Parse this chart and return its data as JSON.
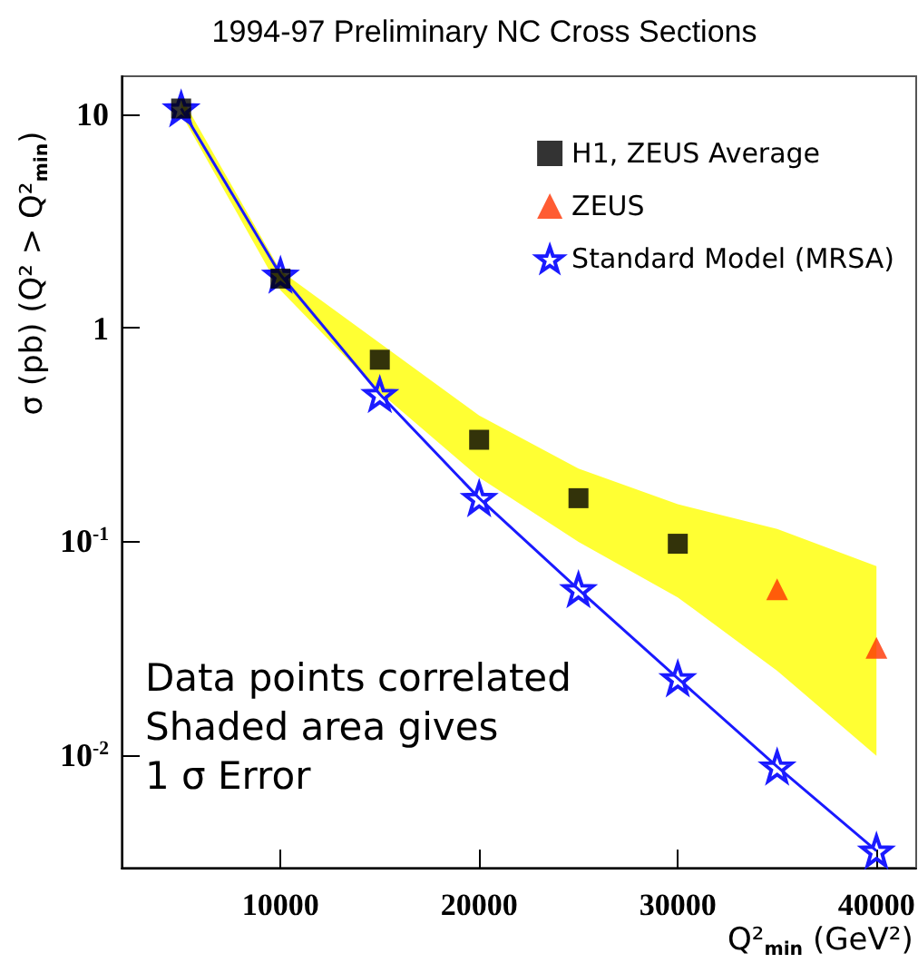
{
  "chart_data": {
    "type": "scatter",
    "title": "1994-97 Preliminary NC Cross Sections",
    "xlabel": "Q²$_{min}$ (GeV²)",
    "ylabel": "σ (pb) (Q² > Q²$_{min}$)",
    "log": "y",
    "legend": "top right",
    "xlim": [
      2000,
      42000
    ],
    "xticks": [
      10000,
      20000,
      30000,
      40000
    ],
    "ylim": [
      0.003,
      15
    ],
    "yticks": [
      {
        "value": 0.01,
        "label": "10$^{-2}$"
      },
      {
        "value": 0.1,
        "label": "10$^{-1}$"
      },
      1,
      10
    ],
    "annotations": [
      "Data points correlated",
      "Shaded area gives",
      "1 σ Error"
    ],
    "series": [
      {
        "type": "area",
        "color": "#ffff33",
        "x": [
          5000,
          10000,
          15000,
          20000,
          25000,
          30000,
          35000,
          40000
        ],
        "values": [
          null,
          null,
          null,
          null,
          null,
          null,
          null,
          null
        ],
        "lower": [
          10,
          1.5,
          0.5,
          0.2,
          0.1,
          0.055,
          0.025,
          0.01
        ],
        "upper": [
          12,
          1.85,
          0.85,
          0.39,
          0.22,
          0.15,
          0.115,
          0.077
        ]
      },
      {
        "name": "H1, ZEUS Average",
        "marker": "square",
        "color": "#000000",
        "x": [
          5000,
          10000,
          15000,
          20000,
          25000,
          30000
        ],
        "values": [
          10.6,
          1.7,
          0.71,
          0.3,
          0.16,
          0.098
        ]
      },
      {
        "name": "ZEUS",
        "marker": "triangle",
        "color": "#ff3300",
        "x": [
          35000,
          40000
        ],
        "values": [
          0.06,
          0.032
        ]
      },
      {
        "name": "Standard Model (MRSA)",
        "type": "line",
        "marker": "star",
        "line_style": "solid",
        "color": "#1a1aff",
        "x": [
          5000,
          10000,
          15000,
          20000,
          25000,
          30000,
          35000,
          40000
        ],
        "values": [
          10.6,
          1.77,
          0.49,
          0.16,
          0.06,
          0.023,
          0.0089,
          0.0036
        ]
      }
    ]
  }
}
